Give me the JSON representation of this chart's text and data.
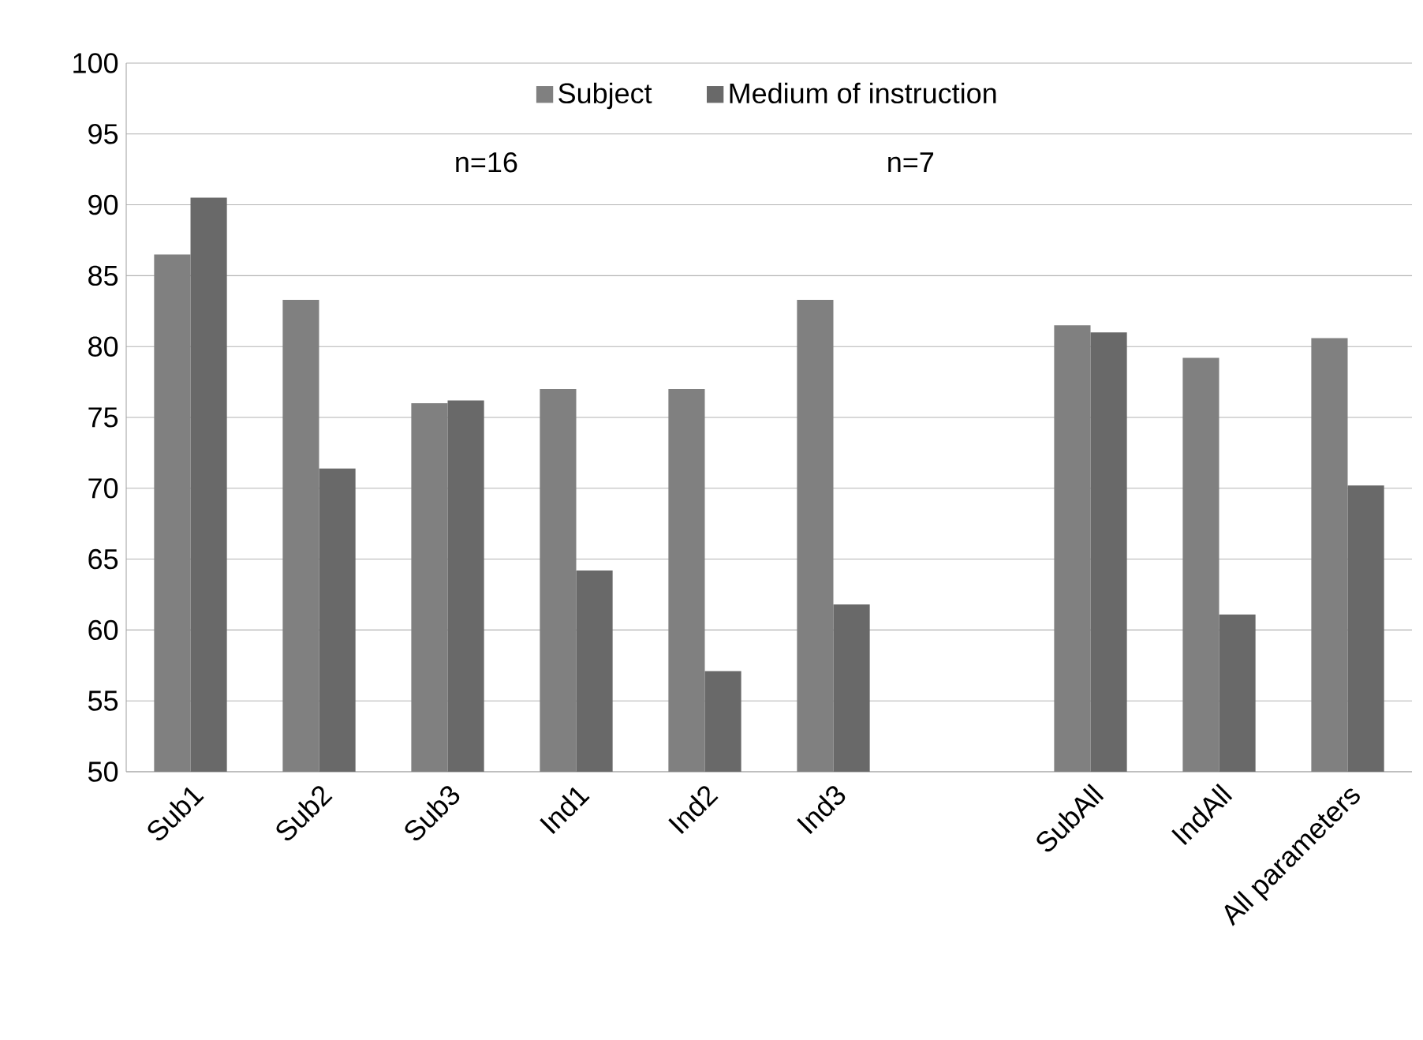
{
  "chart_data": {
    "type": "bar",
    "categories": [
      "Sub1",
      "Sub2",
      "Sub3",
      "Ind1",
      "Ind2",
      "Ind3",
      null,
      "SubAll",
      "IndAll",
      "All parameters"
    ],
    "series": [
      {
        "name": "Subject",
        "color": "#808080",
        "values": [
          86.5,
          83.3,
          76.0,
          77.0,
          77.0,
          83.3,
          null,
          81.5,
          79.2,
          80.6
        ]
      },
      {
        "name": "Medium of instruction",
        "color": "#696969",
        "values": [
          90.5,
          71.4,
          76.2,
          64.2,
          57.1,
          61.8,
          null,
          81.0,
          61.1,
          70.2
        ]
      }
    ],
    "ylim": [
      50,
      100
    ],
    "yticks": [
      50,
      55,
      60,
      65,
      70,
      75,
      80,
      85,
      90,
      95,
      100
    ],
    "grid": "y",
    "legend": "top",
    "annotations": [
      "n=16",
      "n=7"
    ]
  }
}
